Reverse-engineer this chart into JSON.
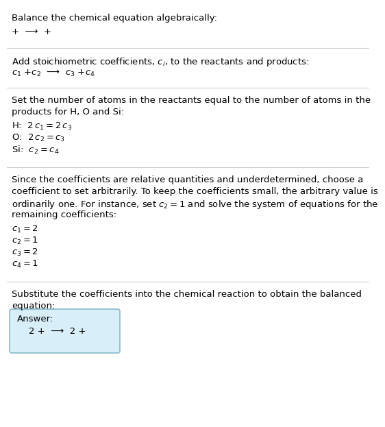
{
  "bg_color": "#ffffff",
  "line_color": "#cccccc",
  "answer_bg": "#d8eef8",
  "answer_border": "#88bbcc",
  "sec1_title": "Balance the chemical equation algebraically:",
  "sec1_line": "+  ⟶  +",
  "sec2_title": "Add stoichiometric coefficients, $c_i$, to the reactants and products:",
  "sec2_eq": "$c_1$ +$c_2$  ⟶  $c_3$ +$c_4$",
  "sec3_title_1": "Set the number of atoms in the reactants equal to the number of atoms in the",
  "sec3_title_2": "products for H, O and Si:",
  "sec3_lines": [
    "H:  $2\\,c_1 = 2\\,c_3$",
    "O:  $2\\,c_2 = c_3$",
    "Si:  $c_2 = c_4$"
  ],
  "sec4_title_1": "Since the coefficients are relative quantities and underdetermined, choose a",
  "sec4_title_2": "coefficient to set arbitrarily. To keep the coefficients small, the arbitrary value is",
  "sec4_title_3": "ordinarily one. For instance, set $c_2 = 1$ and solve the system of equations for the",
  "sec4_title_4": "remaining coefficients:",
  "sec4_lines": [
    "$c_1 = 2$",
    "$c_2 = 1$",
    "$c_3 = 2$",
    "$c_4 = 1$"
  ],
  "sec5_title_1": "Substitute the coefficients into the chemical reaction to obtain the balanced",
  "sec5_title_2": "equation:",
  "answer_label": "Answer:",
  "answer_eq": "2 +  ⟶  2 +"
}
